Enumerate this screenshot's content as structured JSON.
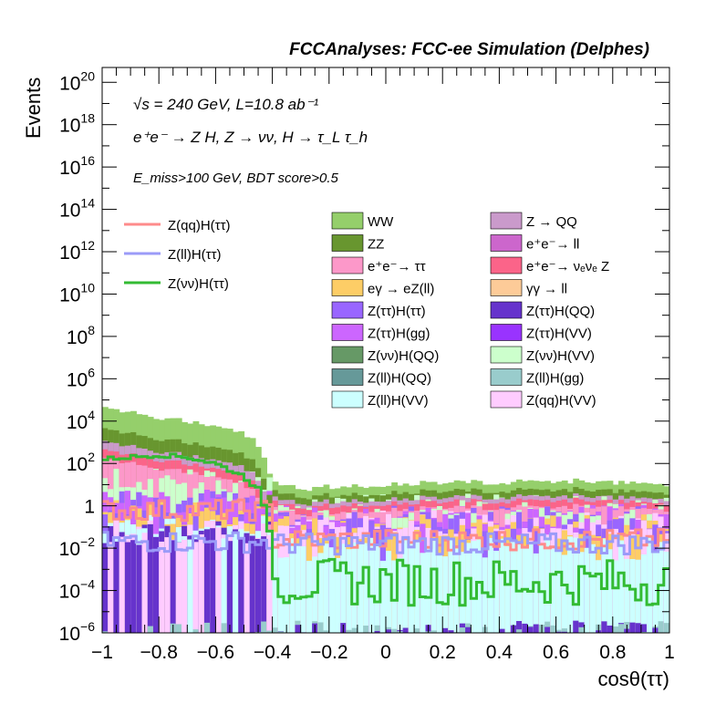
{
  "chart_data": {
    "type": "area",
    "title": "FCCAnalyses: FCC-ee Simulation (Delphes)",
    "xlabel": "cosθ(ττ)",
    "ylabel": "Events",
    "xlim": [
      -1,
      1
    ],
    "ylim_log10": [
      -6,
      20.7
    ],
    "log_y": true,
    "x_ticks": [
      {
        "value": -1,
        "label": "−1"
      },
      {
        "value": -0.8,
        "label": "−0.8"
      },
      {
        "value": -0.6,
        "label": "−0.6"
      },
      {
        "value": -0.4,
        "label": "−0.4"
      },
      {
        "value": -0.2,
        "label": "−0.2"
      },
      {
        "value": 0,
        "label": "0"
      },
      {
        "value": 0.2,
        "label": "0.2"
      },
      {
        "value": 0.4,
        "label": "0.4"
      },
      {
        "value": 0.6,
        "label": "0.6"
      },
      {
        "value": 0.8,
        "label": "0.8"
      },
      {
        "value": 1,
        "label": "1"
      }
    ],
    "y_ticks": [
      {
        "exp": 20,
        "base": "10",
        "sup": "20"
      },
      {
        "exp": 18,
        "base": "10",
        "sup": "18"
      },
      {
        "exp": 16,
        "base": "10",
        "sup": "16"
      },
      {
        "exp": 14,
        "base": "10",
        "sup": "14"
      },
      {
        "exp": 12,
        "base": "10",
        "sup": "12"
      },
      {
        "exp": 10,
        "base": "10",
        "sup": "10"
      },
      {
        "exp": 8,
        "base": "10",
        "sup": "8"
      },
      {
        "exp": 6,
        "base": "10",
        "sup": "6"
      },
      {
        "exp": 4,
        "base": "10",
        "sup": "4"
      },
      {
        "exp": 2,
        "base": "10",
        "sup": "2"
      },
      {
        "exp": 0,
        "base": "1",
        "sup": ""
      },
      {
        "exp": -2,
        "base": "10",
        "sup": "−2"
      },
      {
        "exp": -4,
        "base": "10",
        "sup": "−4"
      },
      {
        "exp": -6,
        "base": "10",
        "sup": "−6"
      }
    ],
    "annotations": [
      "√s = 240 GeV, L=10.8 ab⁻¹",
      "e⁺e⁻ → Z H, Z → νν, H → τ_L τ_h",
      "E_miss>100 GeV, BDT score>0.5"
    ],
    "legend_position": "top, inside plot",
    "signals": [
      {
        "name": "Z(qq)H(ττ)",
        "color": "#fe8b8b"
      },
      {
        "name": "Z(ll)H(ττ)",
        "color": "#9b9bf8"
      },
      {
        "name": "Z(νν)H(ττ)",
        "color": "#33bb33"
      }
    ],
    "backgrounds": [
      {
        "name": "WW",
        "color": "#95cf6b"
      },
      {
        "name": "Z → QQ",
        "color": "#ca9acb"
      },
      {
        "name": "ZZ",
        "color": "#68962f"
      },
      {
        "name": "e⁺e⁻→ ll",
        "color": "#cc66cc"
      },
      {
        "name": "e⁺e⁻→ ττ",
        "color": "#fc98c9"
      },
      {
        "name": "e⁺e⁻→ νₑνₑ Z",
        "color": "#fb6489"
      },
      {
        "name": "eγ → eZ(ll)",
        "color": "#fdcd66"
      },
      {
        "name": "γγ → ll",
        "color": "#fdcb98"
      },
      {
        "name": "Z(ττ)H(ττ)",
        "color": "#9966ff"
      },
      {
        "name": "Z(ττ)H(QQ)",
        "color": "#6633cc"
      },
      {
        "name": "Z(ττ)H(gg)",
        "color": "#cc66ff"
      },
      {
        "name": "Z(ττ)H(VV)",
        "color": "#9933ff"
      },
      {
        "name": "Z(νν)H(QQ)",
        "color": "#669966"
      },
      {
        "name": "Z(νν)H(VV)",
        "color": "#ccffcc"
      },
      {
        "name": "Z(ll)H(QQ)",
        "color": "#669999"
      },
      {
        "name": "Z(ll)H(gg)",
        "color": "#99cccc"
      },
      {
        "name": "Z(ll)H(VV)",
        "color": "#ccffff"
      },
      {
        "name": "Z(qq)H(VV)",
        "color": "#ffccff"
      }
    ],
    "stack_total_log10": {
      "x": [
        -1.0,
        -0.9,
        -0.8,
        -0.7,
        -0.6,
        -0.5,
        -0.45,
        -0.4,
        -0.3,
        -0.2,
        0.0,
        0.2,
        0.4,
        0.6,
        0.8,
        1.0
      ],
      "log10_events": [
        4.7,
        4.4,
        4.2,
        4.0,
        3.8,
        3.4,
        2.9,
        1.1,
        0.8,
        0.9,
        1.0,
        1.1,
        1.1,
        1.2,
        1.1,
        0.9
      ]
    },
    "signal_znn_htt_log10": {
      "x": [
        -1.0,
        -0.9,
        -0.8,
        -0.7,
        -0.6,
        -0.5,
        -0.45,
        -0.42,
        -0.38,
        0.0,
        0.5,
        1.0
      ],
      "log10_events": [
        2.2,
        2.3,
        2.4,
        2.3,
        2.0,
        1.4,
        0.8,
        -0.5,
        -3.0,
        -3.0,
        -3.5,
        -3.0
      ]
    }
  }
}
